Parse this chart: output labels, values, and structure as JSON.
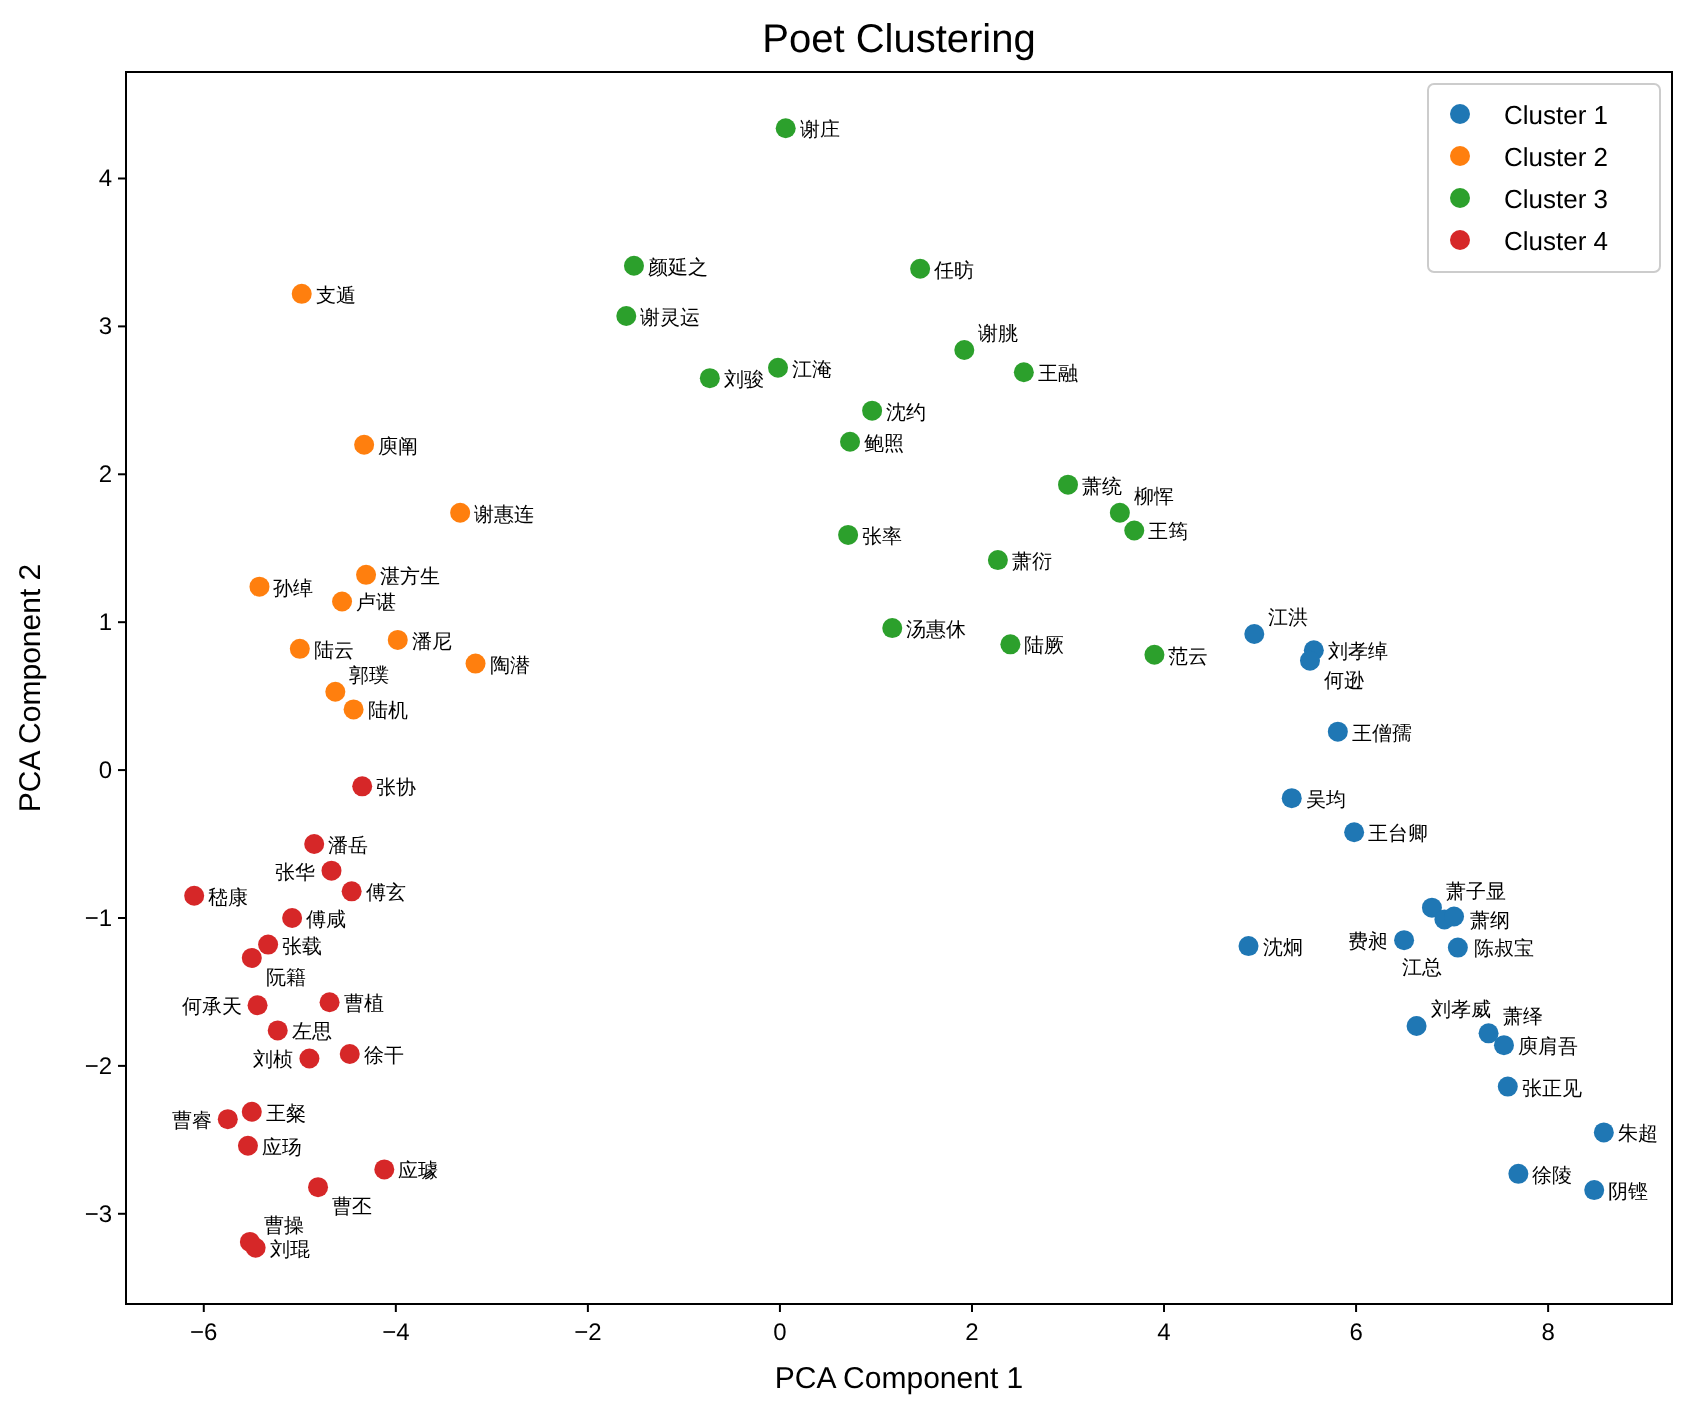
{
  "chart_data": {
    "type": "scatter",
    "title": "Poet Clustering",
    "xlabel": "PCA Component 1",
    "ylabel": "PCA Component 2",
    "xlim": [
      -6.81,
      9.29
    ],
    "ylim": [
      -3.61,
      4.72
    ],
    "xticks": [
      -6,
      -4,
      -2,
      0,
      2,
      4,
      6,
      8
    ],
    "yticks": [
      -3,
      -2,
      -1,
      0,
      1,
      2,
      3,
      4
    ],
    "legend": "top right",
    "marker": "circle",
    "grid": false,
    "series": [
      {
        "name": "Cluster 1",
        "color": "#1f77b4",
        "x": [
          4.94,
          5.56,
          5.52,
          5.81,
          5.33,
          5.98,
          6.79,
          6.92,
          7.02,
          6.5,
          7.06,
          4.88,
          6.63,
          7.38,
          7.54,
          7.58,
          8.58,
          7.69,
          8.48
        ],
        "values": [
          0.92,
          0.81,
          0.74,
          0.26,
          -0.19,
          -0.42,
          -0.93,
          -1.01,
          -0.99,
          -1.15,
          -1.2,
          -1.19,
          -1.73,
          -1.78,
          -1.86,
          -2.14,
          -2.45,
          -2.73,
          -2.84
        ]
      },
      {
        "name": "Cluster 2",
        "color": "#ff7f0e",
        "x": [
          -4.98,
          -4.33,
          -3.33,
          -4.31,
          -5.42,
          -4.56,
          -5.0,
          -3.98,
          -3.17,
          -4.63,
          -4.44
        ],
        "values": [
          3.22,
          2.2,
          1.74,
          1.32,
          1.24,
          1.14,
          0.82,
          0.88,
          0.72,
          0.53,
          0.41
        ]
      },
      {
        "name": "Cluster 3",
        "color": "#2ca02c",
        "x": [
          0.06,
          -1.52,
          -1.6,
          1.46,
          1.92,
          2.54,
          -0.73,
          -0.02,
          0.96,
          0.73,
          3.0,
          3.54,
          3.69,
          0.71,
          2.27,
          1.17,
          2.4,
          3.9
        ],
        "values": [
          4.34,
          3.41,
          3.07,
          3.39,
          2.84,
          2.69,
          2.65,
          2.72,
          2.43,
          2.22,
          1.93,
          1.74,
          1.62,
          1.59,
          1.42,
          0.96,
          0.85,
          0.78
        ]
      },
      {
        "name": "Cluster 4",
        "color": "#d62728",
        "x": [
          -4.35,
          -4.85,
          -4.67,
          -4.46,
          -6.1,
          -5.08,
          -5.33,
          -5.5,
          -5.44,
          -4.69,
          -5.23,
          -4.9,
          -4.48,
          -5.5,
          -5.75,
          -5.54,
          -4.12,
          -4.81,
          -5.52,
          -5.46
        ],
        "values": [
          -0.11,
          -0.5,
          -0.68,
          -0.82,
          -0.85,
          -1.0,
          -1.18,
          -1.27,
          -1.59,
          -1.57,
          -1.76,
          -1.95,
          -1.92,
          -2.31,
          -2.36,
          -2.54,
          -2.7,
          -2.82,
          -3.19,
          -3.23
        ]
      }
    ],
    "annotations": [
      {
        "text": "江洪",
        "x": 4.94,
        "y": 0.92
      },
      {
        "text": "刘孝绰",
        "x": 5.56,
        "y": 0.81
      },
      {
        "text": "何逊",
        "x": 5.52,
        "y": 0.74
      },
      {
        "text": "王僧孺",
        "x": 5.81,
        "y": 0.26
      },
      {
        "text": "吴均",
        "x": 5.33,
        "y": -0.19
      },
      {
        "text": "王台卿",
        "x": 5.98,
        "y": -0.42
      },
      {
        "text": "萧子显",
        "x": 6.79,
        "y": -0.93
      },
      {
        "text": "萧纲",
        "x": 6.92,
        "y": -1.01
      },
      {
        "text": "陈叔宝",
        "x": 7.02,
        "y": -0.99
      },
      {
        "text": "费昶",
        "x": 6.5,
        "y": -1.15
      },
      {
        "text": "江总",
        "x": 7.06,
        "y": -1.2
      },
      {
        "text": "沈炯",
        "x": 4.88,
        "y": -1.19
      },
      {
        "text": "刘孝威",
        "x": 6.63,
        "y": -1.73
      },
      {
        "text": "萧绎",
        "x": 7.38,
        "y": -1.78
      },
      {
        "text": "庾肩吾",
        "x": 7.54,
        "y": -1.86
      },
      {
        "text": "张正见",
        "x": 7.58,
        "y": -2.14
      },
      {
        "text": "朱超",
        "x": 8.58,
        "y": -2.45
      },
      {
        "text": "徐陵",
        "x": 7.69,
        "y": -2.73
      },
      {
        "text": "阴铿",
        "x": 8.48,
        "y": -2.84
      },
      {
        "text": "支遁",
        "x": -4.98,
        "y": 3.22
      },
      {
        "text": "庾阐",
        "x": -4.33,
        "y": 2.2
      },
      {
        "text": "谢惠连",
        "x": -3.33,
        "y": 1.74
      },
      {
        "text": "湛方生",
        "x": -4.31,
        "y": 1.32
      },
      {
        "text": "孙绰",
        "x": -5.42,
        "y": 1.24
      },
      {
        "text": "卢谌",
        "x": -4.56,
        "y": 1.14
      },
      {
        "text": "陆云",
        "x": -5.0,
        "y": 0.82
      },
      {
        "text": "潘尼",
        "x": -3.98,
        "y": 0.88
      },
      {
        "text": "陶潜",
        "x": -3.17,
        "y": 0.72
      },
      {
        "text": "郭璞",
        "x": -4.63,
        "y": 0.53
      },
      {
        "text": "陆机",
        "x": -4.44,
        "y": 0.41
      },
      {
        "text": "谢庄",
        "x": 0.06,
        "y": 4.34
      },
      {
        "text": "颜延之",
        "x": -1.52,
        "y": 3.41
      },
      {
        "text": "谢灵运",
        "x": -1.6,
        "y": 3.07
      },
      {
        "text": "任昉",
        "x": 1.46,
        "y": 3.39
      },
      {
        "text": "谢朓",
        "x": 1.92,
        "y": 2.84
      },
      {
        "text": "王融",
        "x": 2.54,
        "y": 2.69
      },
      {
        "text": "刘骏",
        "x": -0.73,
        "y": 2.65
      },
      {
        "text": "江淹",
        "x": -0.02,
        "y": 2.72
      },
      {
        "text": "沈约",
        "x": 0.96,
        "y": 2.43
      },
      {
        "text": "鲍照",
        "x": 0.73,
        "y": 2.22
      },
      {
        "text": "萧统",
        "x": 3.0,
        "y": 1.93
      },
      {
        "text": "柳恽",
        "x": 3.54,
        "y": 1.74
      },
      {
        "text": "王筠",
        "x": 3.69,
        "y": 1.62
      },
      {
        "text": "张率",
        "x": 0.71,
        "y": 1.59
      },
      {
        "text": "萧衍",
        "x": 2.27,
        "y": 1.42
      },
      {
        "text": "汤惠休",
        "x": 1.17,
        "y": 0.96
      },
      {
        "text": "陆厥",
        "x": 2.4,
        "y": 0.85
      },
      {
        "text": "范云",
        "x": 3.9,
        "y": 0.78
      },
      {
        "text": "张协",
        "x": -4.35,
        "y": -0.11
      },
      {
        "text": "潘岳",
        "x": -4.85,
        "y": -0.5
      },
      {
        "text": "张华",
        "x": -4.67,
        "y": -0.68
      },
      {
        "text": "傅玄",
        "x": -4.46,
        "y": -0.82
      },
      {
        "text": "嵇康",
        "x": -6.1,
        "y": -0.85
      },
      {
        "text": "傅咸",
        "x": -5.08,
        "y": -1.0
      },
      {
        "text": "张载",
        "x": -5.33,
        "y": -1.18
      },
      {
        "text": "阮籍",
        "x": -5.5,
        "y": -1.27
      },
      {
        "text": "何承天",
        "x": -5.44,
        "y": -1.59
      },
      {
        "text": "曹植",
        "x": -4.69,
        "y": -1.57
      },
      {
        "text": "左思",
        "x": -5.23,
        "y": -1.76
      },
      {
        "text": "刘桢",
        "x": -4.9,
        "y": -1.95
      },
      {
        "text": "徐干",
        "x": -4.48,
        "y": -1.92
      },
      {
        "text": "王粲",
        "x": -5.5,
        "y": -2.31
      },
      {
        "text": "曹睿",
        "x": -5.75,
        "y": -2.36
      },
      {
        "text": "应玚",
        "x": -5.54,
        "y": -2.54
      },
      {
        "text": "应璩",
        "x": -4.12,
        "y": -2.7
      },
      {
        "text": "曹丕",
        "x": -4.81,
        "y": -2.82
      },
      {
        "text": "曹操",
        "x": -5.52,
        "y": -3.19
      },
      {
        "text": "刘琨",
        "x": -5.46,
        "y": -3.23
      }
    ]
  }
}
